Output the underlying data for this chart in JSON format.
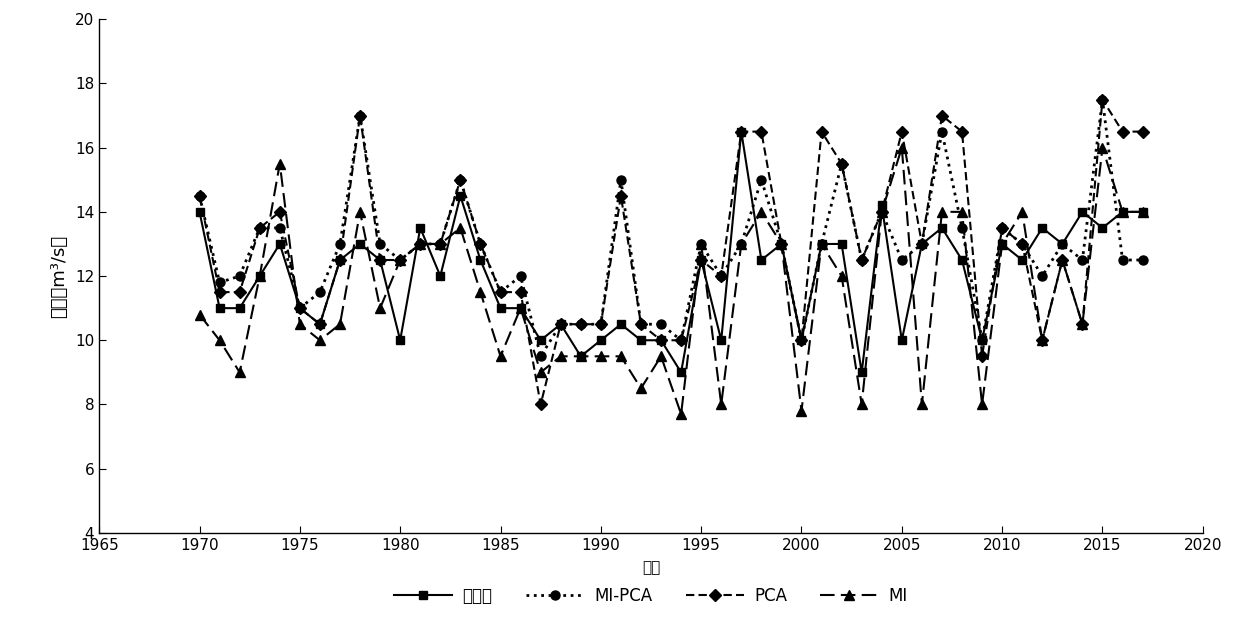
{
  "years": [
    1970,
    1971,
    1972,
    1973,
    1974,
    1975,
    1976,
    1977,
    1978,
    1979,
    1980,
    1981,
    1982,
    1983,
    1984,
    1985,
    1986,
    1987,
    1988,
    1989,
    1990,
    1991,
    1992,
    1993,
    1994,
    1995,
    1996,
    1997,
    1998,
    1999,
    2000,
    2001,
    2002,
    2003,
    2004,
    2005,
    2006,
    2007,
    2008,
    2009,
    2010,
    2011,
    2012,
    2013,
    2014,
    2015,
    2016,
    2017
  ],
  "actual": [
    14.0,
    11.0,
    11.0,
    12.0,
    13.0,
    11.0,
    10.5,
    12.5,
    13.0,
    12.5,
    10.0,
    13.5,
    12.0,
    14.5,
    12.5,
    11.0,
    11.0,
    10.0,
    10.5,
    9.5,
    10.0,
    10.5,
    10.0,
    10.0,
    9.0,
    12.5,
    10.0,
    16.5,
    12.5,
    13.0,
    10.0,
    13.0,
    13.0,
    9.0,
    14.2,
    10.0,
    13.0,
    13.5,
    12.5,
    10.0,
    13.0,
    12.5,
    13.5,
    13.0,
    14.0,
    13.5,
    14.0,
    14.0
  ],
  "mi_pca": [
    14.5,
    11.8,
    12.0,
    13.5,
    13.5,
    11.0,
    11.5,
    13.0,
    17.0,
    13.0,
    12.5,
    13.0,
    13.0,
    15.0,
    13.0,
    11.5,
    12.0,
    9.5,
    10.5,
    10.5,
    10.5,
    15.0,
    10.5,
    10.5,
    10.0,
    13.0,
    12.0,
    13.0,
    15.0,
    13.0,
    10.0,
    13.0,
    15.5,
    12.5,
    14.0,
    12.5,
    13.0,
    16.5,
    13.5,
    10.0,
    13.5,
    13.0,
    12.0,
    13.0,
    12.5,
    17.5,
    12.5,
    12.5
  ],
  "pca": [
    14.5,
    11.5,
    11.5,
    13.5,
    14.0,
    11.0,
    10.5,
    12.5,
    17.0,
    12.5,
    12.5,
    13.0,
    13.0,
    15.0,
    13.0,
    11.5,
    11.5,
    8.0,
    10.5,
    10.5,
    10.5,
    14.5,
    10.5,
    10.0,
    10.0,
    12.5,
    12.0,
    16.5,
    16.5,
    13.0,
    10.0,
    16.5,
    15.5,
    12.5,
    14.0,
    16.5,
    13.0,
    17.0,
    16.5,
    9.5,
    13.5,
    13.0,
    10.0,
    12.5,
    10.5,
    17.5,
    16.5,
    16.5
  ],
  "mi": [
    10.8,
    10.0,
    9.0,
    12.0,
    15.5,
    10.5,
    10.0,
    10.5,
    14.0,
    11.0,
    12.5,
    13.0,
    13.0,
    13.5,
    11.5,
    9.5,
    11.0,
    9.0,
    9.5,
    9.5,
    9.5,
    9.5,
    8.5,
    9.5,
    7.7,
    13.0,
    8.0,
    13.0,
    14.0,
    13.0,
    7.8,
    13.0,
    12.0,
    8.0,
    14.0,
    16.0,
    8.0,
    14.0,
    14.0,
    8.0,
    13.0,
    14.0,
    10.0,
    12.5,
    10.5,
    16.0,
    14.0,
    14.0
  ],
  "ylabel": "流量（m³/s）",
  "xlabel": "年份",
  "ylim": [
    4,
    20
  ],
  "xlim": [
    1965,
    2020
  ],
  "yticks": [
    4,
    6,
    8,
    10,
    12,
    14,
    16,
    18,
    20
  ],
  "xticks": [
    1965,
    1970,
    1975,
    1980,
    1985,
    1990,
    1995,
    2000,
    2005,
    2010,
    2015,
    2020
  ],
  "legend_labels": [
    "实测值",
    "MI-PCA",
    "PCA",
    "MI"
  ],
  "line_color": "#000000",
  "background_color": "#ffffff"
}
